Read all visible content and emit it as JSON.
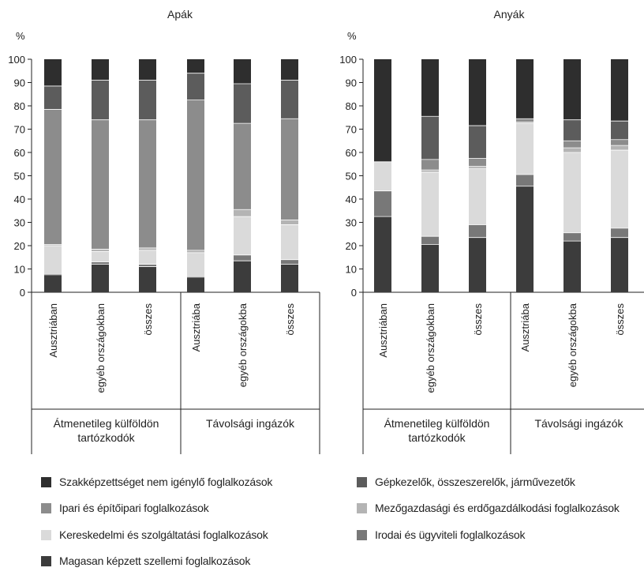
{
  "unit_label": "%",
  "y_ticks": [
    0,
    10,
    20,
    30,
    40,
    50,
    60,
    70,
    80,
    90,
    100
  ],
  "colors": {
    "szakkepzettseg": "#2e2e2e",
    "gepkezelok": "#5c5c5c",
    "ipari": "#8c8c8c",
    "mezogazdasagi": "#b4b4b4",
    "kereskedelmi": "#dadada",
    "irodai": "#787878",
    "magasan": "#3c3c3c"
  },
  "legend": [
    {
      "key": "szakkepzettseg",
      "label": "Szakképzettséget nem igénylő foglalkozások"
    },
    {
      "key": "gepkezelok",
      "label": "Gépkezelők, összeszerelők, járművezetők"
    },
    {
      "key": "ipari",
      "label": "Ipari és építőipari foglalkozások"
    },
    {
      "key": "mezogazdasagi",
      "label": "Mezőgazdasági és erdőgazdálkodási foglalkozások"
    },
    {
      "key": "kereskedelmi",
      "label": "Kereskedelmi és szolgáltatási foglalkozások"
    },
    {
      "key": "irodai",
      "label": "Irodai és ügyviteli foglalkozások"
    },
    {
      "key": "magasan",
      "label": "Magasan képzett szellemi foglalkozások"
    }
  ],
  "chart_data": [
    {
      "type": "bar",
      "stacked": true,
      "title": "Apák",
      "ylabel": "%",
      "ylim": [
        0,
        100
      ],
      "categories": [
        "Ausztriában",
        "egyéb országokban",
        "összes",
        "Ausztriába",
        "egyéb országokba",
        "összes"
      ],
      "groups": [
        {
          "label": "Átmenetileg külföldön tartózkodók",
          "categories": [
            "Ausztriában",
            "egyéb országokban",
            "összes"
          ]
        },
        {
          "label": "Távolsági ingázók",
          "categories": [
            "Ausztriába",
            "egyéb országokba",
            "összes"
          ]
        }
      ],
      "series": [
        {
          "key": "magasan",
          "values": [
            7.5,
            12,
            11,
            6.5,
            13.5,
            12
          ]
        },
        {
          "key": "irodai",
          "values": [
            0.5,
            1,
            1,
            0.5,
            2.5,
            2
          ]
        },
        {
          "key": "kereskedelmi",
          "values": [
            12,
            4.5,
            6,
            10,
            16.5,
            15
          ]
        },
        {
          "key": "mezogazdasagi",
          "values": [
            0.5,
            1,
            1,
            1,
            3,
            2
          ]
        },
        {
          "key": "ipari",
          "values": [
            58,
            55.5,
            55,
            64.5,
            37,
            43.5
          ]
        },
        {
          "key": "gepkezelok",
          "values": [
            10,
            17,
            17,
            11.5,
            17,
            16.5
          ]
        },
        {
          "key": "szakkepzettseg",
          "values": [
            11.5,
            9,
            9,
            6,
            10.5,
            9
          ]
        }
      ]
    },
    {
      "type": "bar",
      "stacked": true,
      "title": "Anyák",
      "ylabel": "%",
      "ylim": [
        0,
        100
      ],
      "categories": [
        "Ausztriában",
        "egyéb országokban",
        "összes",
        "Ausztriába",
        "egyéb országokba",
        "összes"
      ],
      "groups": [
        {
          "label": "Átmenetileg külföldön tartózkodók",
          "categories": [
            "Ausztriában",
            "egyéb országokban",
            "összes"
          ]
        },
        {
          "label": "Távolsági ingázók",
          "categories": [
            "Ausztriába",
            "egyéb országokba",
            "összes"
          ]
        }
      ],
      "series": [
        {
          "key": "magasan",
          "values": [
            32.5,
            20.5,
            23.5,
            45.5,
            22,
            23.5
          ]
        },
        {
          "key": "irodai",
          "values": [
            11,
            3.5,
            5.5,
            5,
            3.5,
            4
          ]
        },
        {
          "key": "kereskedelmi",
          "values": [
            12.5,
            27.5,
            24,
            22,
            34.5,
            33.5
          ]
        },
        {
          "key": "mezogazdasagi",
          "values": [
            0,
            1,
            1,
            0.5,
            2,
            2
          ]
        },
        {
          "key": "ipari",
          "values": [
            0,
            4.5,
            3.5,
            1.5,
            3,
            2.5
          ]
        },
        {
          "key": "gepkezelok",
          "values": [
            0,
            18.5,
            14,
            0,
            9,
            8
          ]
        },
        {
          "key": "szakkepzettseg",
          "values": [
            44,
            24.5,
            28.5,
            25.5,
            26,
            26.5
          ]
        }
      ]
    }
  ]
}
